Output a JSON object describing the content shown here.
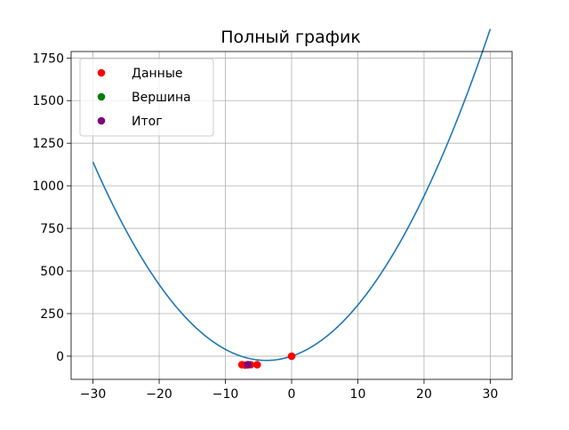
{
  "chart_data": {
    "type": "scatter",
    "title": "Полный график",
    "xlabel": "",
    "ylabel": "",
    "xlim": [
      -33.3,
      33.3
    ],
    "ylim": [
      -136,
      1788
    ],
    "xticks": [
      -30,
      -20,
      -10,
      0,
      10,
      20,
      30
    ],
    "yticks": [
      0,
      250,
      500,
      750,
      1000,
      1250,
      1500,
      1750
    ],
    "grid": true,
    "legend_position": "top-left",
    "curve": {
      "color": "#1f77b4",
      "x_range": [
        -30,
        30
      ],
      "coefficients": {
        "a": 1.7,
        "b": 13,
        "c": 0
      }
    },
    "series": [
      {
        "name": "Данные",
        "color": "#ff0000",
        "points": [
          [
            -7.5,
            -50
          ],
          [
            -7.0,
            -52
          ],
          [
            -6.2,
            -50
          ],
          [
            -5.2,
            -50
          ],
          [
            0.0,
            0
          ]
        ]
      },
      {
        "name": "Вершина",
        "color": "#008000",
        "points": [
          [
            -6.6,
            -50
          ]
        ]
      },
      {
        "name": "Итог",
        "color": "#800080",
        "points": [
          [
            -6.6,
            -50
          ]
        ]
      }
    ]
  }
}
